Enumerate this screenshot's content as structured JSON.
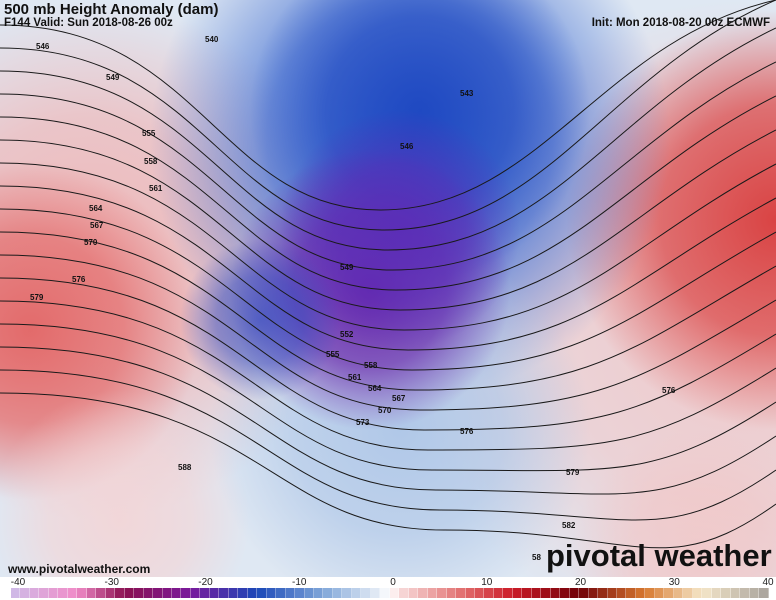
{
  "header": {
    "title": "500 mb Height Anomaly (dam)",
    "valid": "F144 Valid: Sun 2018-08-26 00z",
    "init": "Init: Mon 2018-08-20 00z ECMWF"
  },
  "footer": {
    "website": "www.pivotalweather.com",
    "logo_text": "pivotal weather"
  },
  "colorbar": {
    "min": -40,
    "max": 40,
    "tick_labels": [
      "-40",
      "-30",
      "-20",
      "-10",
      "0",
      "10",
      "20",
      "30",
      "40"
    ],
    "anchor_colors": [
      {
        "value": -40,
        "color": "#cdbbe8"
      },
      {
        "value": -33,
        "color": "#f08cc8"
      },
      {
        "value": -28,
        "color": "#8a1050"
      },
      {
        "value": -21,
        "color": "#7a1a9c"
      },
      {
        "value": -14,
        "color": "#1a48b8"
      },
      {
        "value": -7,
        "color": "#7fa6d8"
      },
      {
        "value": -1,
        "color": "#e8eef6"
      },
      {
        "value": 0,
        "color": "#ffffff"
      },
      {
        "value": 1,
        "color": "#f8dcdc"
      },
      {
        "value": 8,
        "color": "#e06a6a"
      },
      {
        "value": 13,
        "color": "#cc1c28"
      },
      {
        "value": 20,
        "color": "#700008"
      },
      {
        "value": 27,
        "color": "#d87a30"
      },
      {
        "value": 33,
        "color": "#f4e6c8"
      },
      {
        "value": 40,
        "color": "#a8a29c"
      }
    ]
  },
  "contours": {
    "unit": "dam",
    "levels": [
      540,
      543,
      546,
      549,
      552,
      555,
      558,
      561,
      564,
      567,
      570,
      573,
      576,
      579,
      582,
      585,
      588
    ],
    "labels": [
      "540",
      "546",
      "549",
      "555",
      "558",
      "561",
      "564",
      "567",
      "570",
      "576",
      "579",
      "588",
      "543",
      "546",
      "549",
      "552",
      "555",
      "558",
      "561",
      "564",
      "567",
      "570",
      "573",
      "576",
      "576",
      "579",
      "582",
      "58"
    ]
  },
  "colors": {
    "negative_anomaly": "#2050c0",
    "strong_negative": "#7020a0",
    "positive_anomaly": "#d84040"
  }
}
